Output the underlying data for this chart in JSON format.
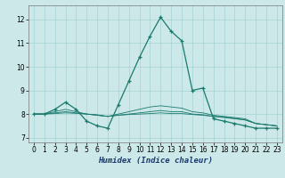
{
  "xlabel": "Humidex (Indice chaleur)",
  "background_color": "#cce8e8",
  "line_color": "#1a7a6e",
  "xlim": [
    -0.5,
    23.5
  ],
  "ylim": [
    6.8,
    12.6
  ],
  "yticks": [
    7,
    8,
    9,
    10,
    11,
    12
  ],
  "xticks": [
    0,
    1,
    2,
    3,
    4,
    5,
    6,
    7,
    8,
    9,
    10,
    11,
    12,
    13,
    14,
    15,
    16,
    17,
    18,
    19,
    20,
    21,
    22,
    23
  ],
  "series": [
    [
      8.0,
      8.0,
      8.2,
      8.5,
      8.2,
      7.7,
      7.5,
      7.4,
      8.4,
      9.4,
      10.4,
      11.3,
      12.1,
      11.5,
      11.1,
      9.0,
      9.1,
      7.8,
      7.7,
      7.6,
      7.5,
      7.4,
      7.4,
      7.4
    ],
    [
      8.0,
      8.0,
      8.1,
      8.2,
      8.1,
      8.0,
      7.95,
      7.9,
      8.0,
      8.1,
      8.2,
      8.3,
      8.35,
      8.3,
      8.25,
      8.1,
      8.05,
      7.95,
      7.9,
      7.85,
      7.8,
      7.6,
      7.55,
      7.5
    ],
    [
      8.0,
      8.0,
      8.05,
      8.1,
      8.05,
      8.0,
      7.95,
      7.9,
      7.95,
      8.0,
      8.05,
      8.1,
      8.15,
      8.1,
      8.1,
      8.0,
      7.97,
      7.9,
      7.88,
      7.82,
      7.75,
      7.6,
      7.55,
      7.5
    ],
    [
      8.0,
      8.0,
      8.02,
      8.05,
      8.03,
      8.0,
      7.97,
      7.9,
      7.95,
      7.98,
      8.0,
      8.02,
      8.05,
      8.02,
      8.02,
      7.98,
      7.95,
      7.9,
      7.85,
      7.8,
      7.75,
      7.6,
      7.55,
      7.5
    ]
  ]
}
